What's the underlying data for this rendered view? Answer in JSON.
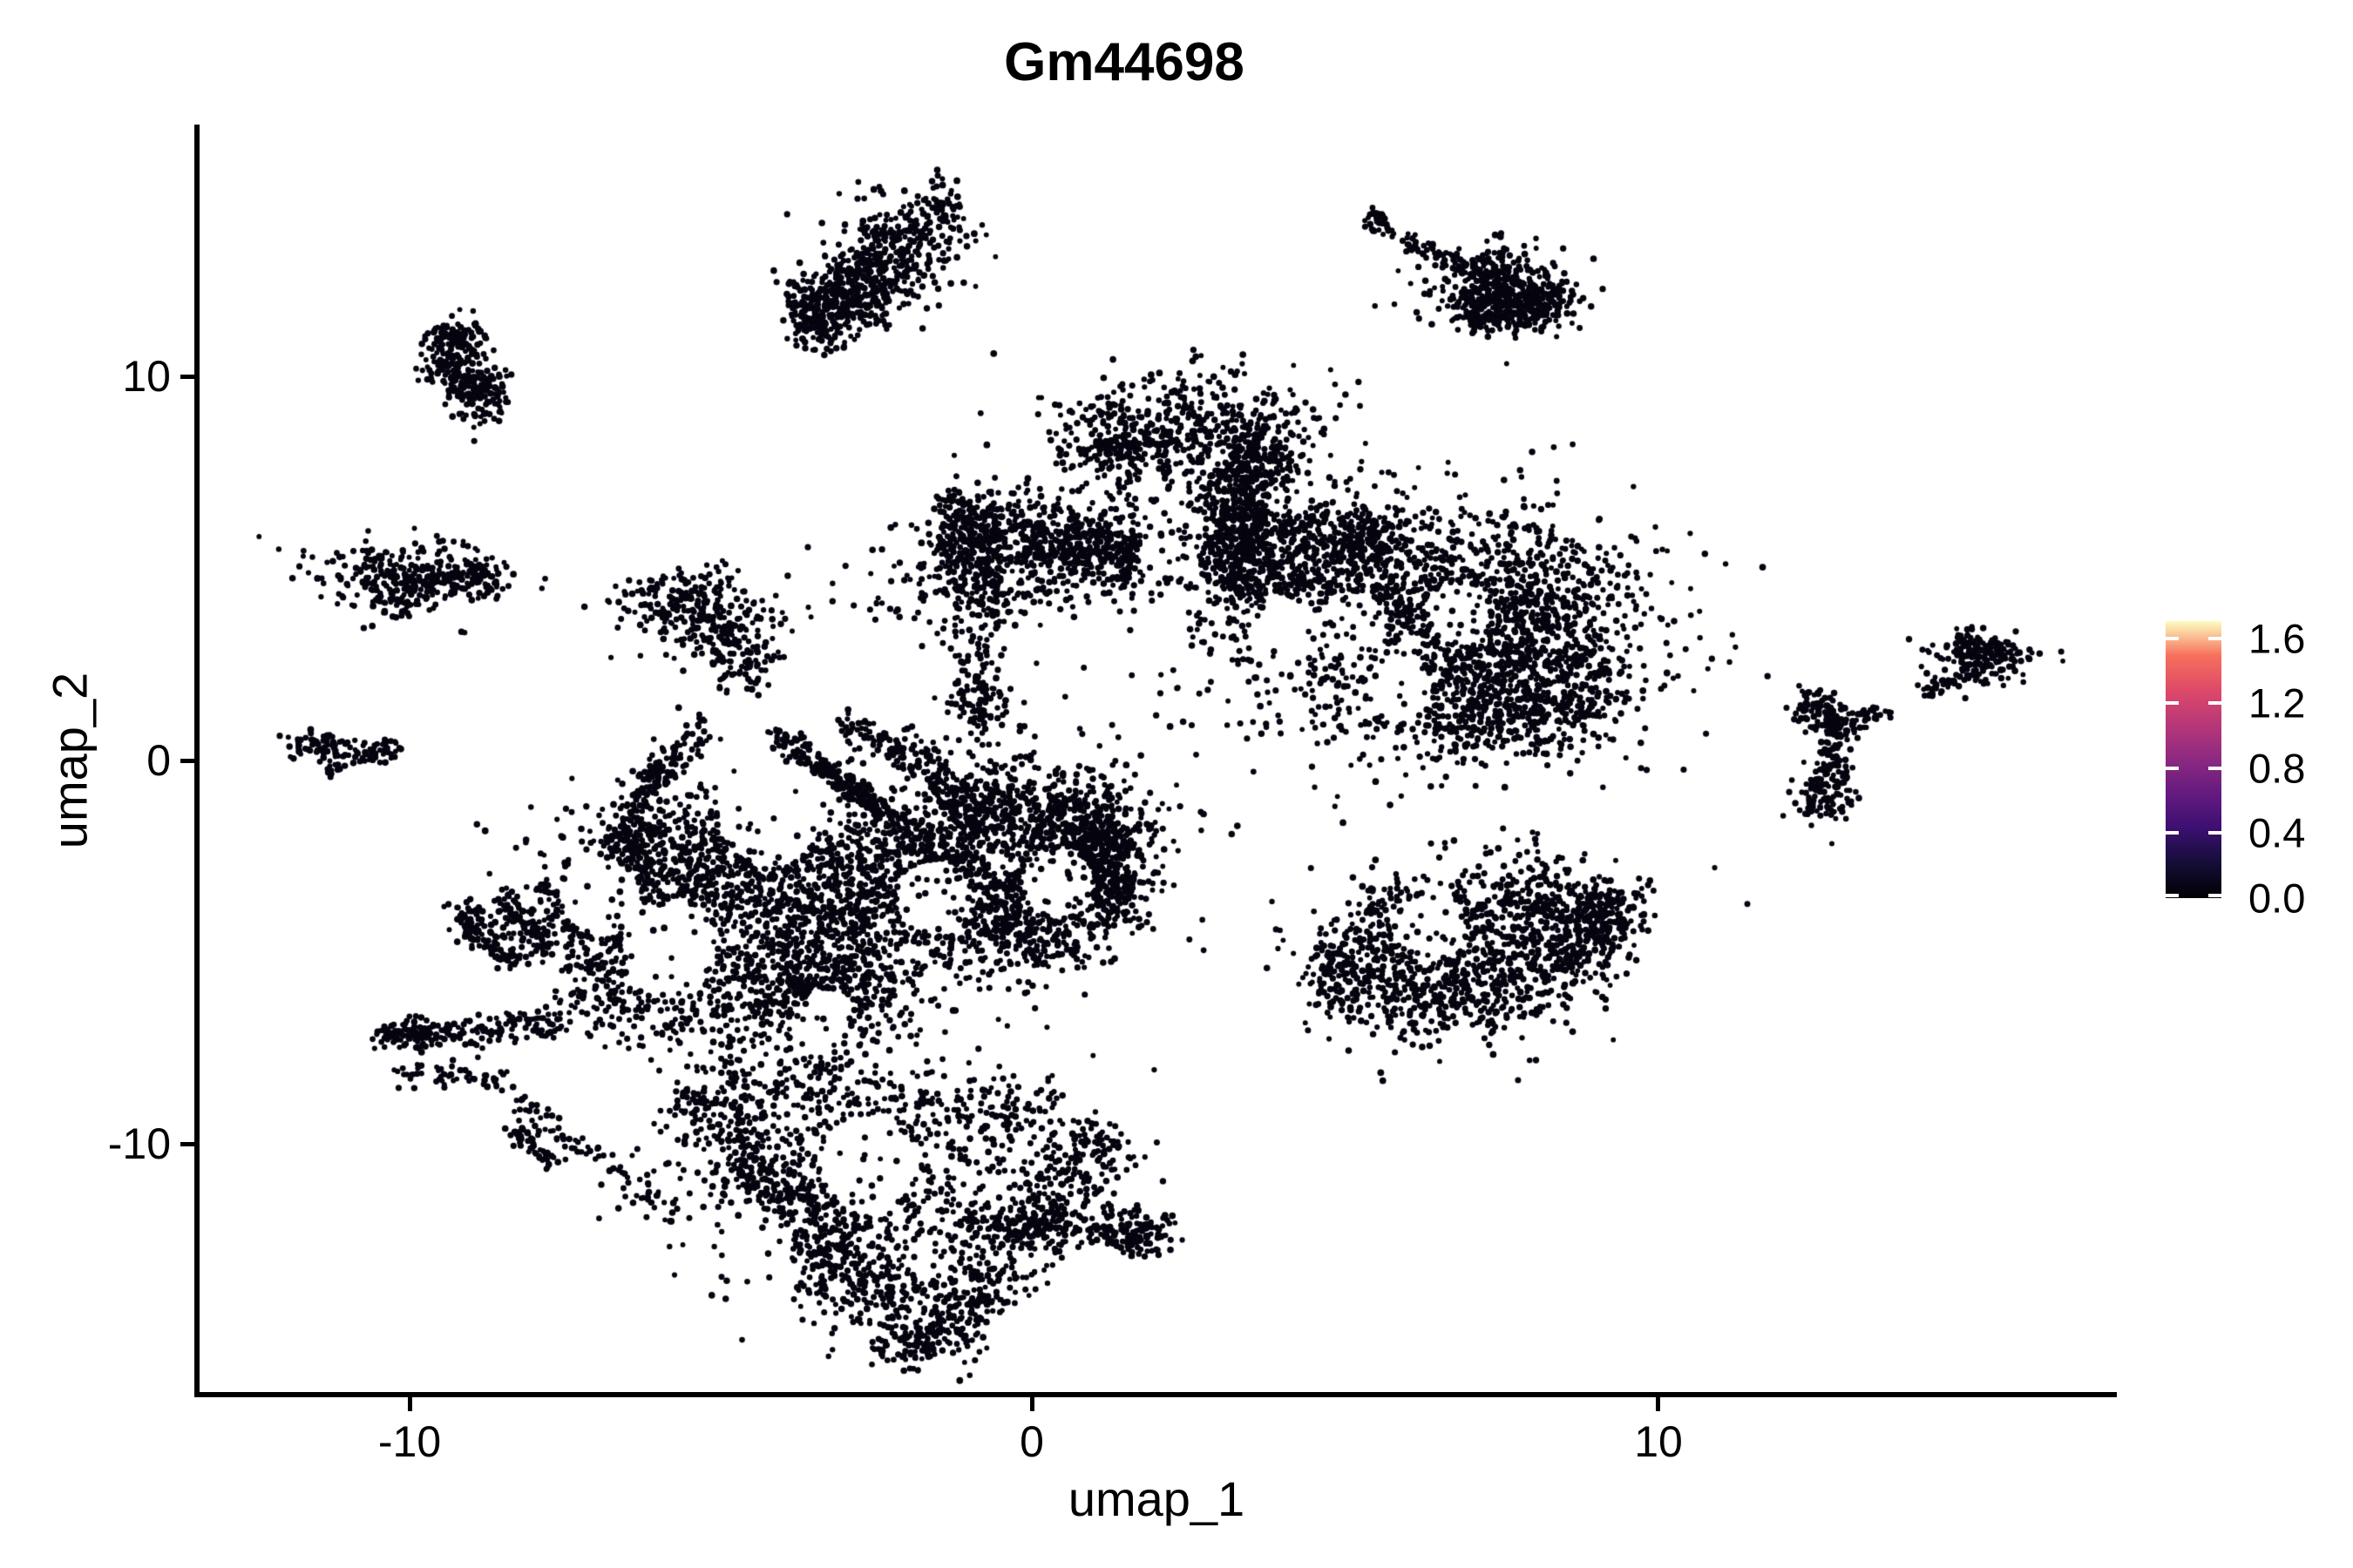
{
  "title": "Gm44698",
  "axes": {
    "x": {
      "label": "umap_1",
      "ticks": [
        "-10",
        "0",
        "10"
      ]
    },
    "y": {
      "label": "umap_2",
      "ticks": [
        "10",
        "0",
        "-10"
      ]
    }
  },
  "legend": {
    "labels": [
      "1.6",
      "1.2",
      "0.8",
      "0.4",
      "0.0"
    ]
  },
  "chart_data": {
    "type": "scatter",
    "title": "Gm44698",
    "xlabel": "umap_1",
    "ylabel": "umap_2",
    "xlim": [
      -13.37,
      17.38
    ],
    "ylim": [
      -16.53,
      16.5
    ],
    "xticks": [
      -10,
      0,
      10
    ],
    "yticks": [
      -10,
      0,
      10
    ],
    "grid": false,
    "legend_position": "right",
    "colorbar": {
      "label_values": [
        1.6,
        1.2,
        0.8,
        0.4,
        0.0
      ],
      "vmin": 0.0,
      "vmax": 1.72,
      "colormap": "magma",
      "stops": [
        "#000004",
        "#140e36",
        "#3b0f70",
        "#641a80",
        "#8c2981",
        "#b73779",
        "#de4968",
        "#f7705c",
        "#fcfdbf"
      ]
    },
    "point_color": "#06040f",
    "point_radius": 3.4,
    "seed": 42,
    "clusters": [
      {
        "t": "b",
        "x1": -3.75,
        "y1": 11.4,
        "x2": -1.2,
        "y2": 14.5,
        "w": 50,
        "n": 430
      },
      {
        "t": "b",
        "x1": -3.85,
        "y1": 11.15,
        "x2": -2.3,
        "y2": 12.2,
        "w": 38,
        "n": 210
      },
      {
        "t": "g",
        "cx": -2.35,
        "cy": 13.0,
        "rx": 0.6,
        "ry": 0.85,
        "n": 140
      },
      {
        "t": "b",
        "x1": -9.15,
        "y1": 11.35,
        "x2": -9.35,
        "y2": 9.9,
        "w": 40,
        "n": 190
      },
      {
        "t": "b",
        "x1": -9.3,
        "y1": 9.85,
        "x2": -8.45,
        "y2": 9.3,
        "w": 36,
        "n": 130
      },
      {
        "t": "b",
        "x1": 5.33,
        "y1": 14.25,
        "x2": 5.75,
        "y2": 13.9,
        "w": 14,
        "n": 35
      },
      {
        "t": "b",
        "x1": 5.95,
        "y1": 13.6,
        "x2": 7.3,
        "y2": 12.6,
        "w": 13,
        "n": 80
      },
      {
        "t": "b",
        "x1": 7.0,
        "y1": 12.75,
        "x2": 8.35,
        "y2": 11.8,
        "w": 46,
        "n": 250
      },
      {
        "t": "g",
        "cx": 8.1,
        "cy": 11.9,
        "rx": 0.42,
        "ry": 0.33,
        "n": 150
      },
      {
        "t": "g",
        "cx": 7.2,
        "cy": 12.15,
        "rx": 0.55,
        "ry": 0.5,
        "n": 110
      },
      {
        "t": "g",
        "cx": 7.35,
        "cy": 11.55,
        "rx": 0.3,
        "ry": 0.25,
        "n": 80
      },
      {
        "t": "g",
        "cx": -9.95,
        "cy": 4.85,
        "rx": 0.8,
        "ry": 0.45,
        "n": 250
      },
      {
        "t": "b",
        "x1": -9.2,
        "y1": 4.95,
        "x2": -8.55,
        "y2": 4.6,
        "w": 30,
        "n": 70
      },
      {
        "t": "g",
        "cx": -10.2,
        "cy": 4.25,
        "rx": 0.4,
        "ry": 0.35,
        "n": 70
      },
      {
        "t": "g",
        "cx": -5.55,
        "cy": 4.1,
        "rx": 0.5,
        "ry": 0.5,
        "n": 190
      },
      {
        "t": "g",
        "cx": -4.75,
        "cy": 3.5,
        "rx": 0.6,
        "ry": 0.55,
        "n": 90
      },
      {
        "t": "b",
        "x1": -5.1,
        "y1": 3.2,
        "x2": -4.35,
        "y2": 2.1,
        "w": 40,
        "n": 80
      },
      {
        "t": "g",
        "cx": -11.35,
        "cy": 0.35,
        "rx": 0.33,
        "ry": 0.2,
        "n": 70
      },
      {
        "t": "b",
        "x1": -10.95,
        "y1": 0.15,
        "x2": -10.1,
        "y2": 0.3,
        "w": 18,
        "n": 50
      },
      {
        "t": "g",
        "cx": -11.15,
        "cy": -0.2,
        "rx": 0.12,
        "ry": 0.1,
        "n": 12
      },
      {
        "t": "g",
        "cx": 2.55,
        "cy": 8.65,
        "rx": 1.1,
        "ry": 0.8,
        "n": 500
      },
      {
        "t": "g",
        "cx": 1.55,
        "cy": 8.1,
        "rx": 0.5,
        "ry": 0.5,
        "n": 110
      },
      {
        "t": "b",
        "x1": 3.3,
        "y1": 8.2,
        "x2": 4.05,
        "y2": 7.35,
        "w": 40,
        "n": 130
      },
      {
        "t": "b",
        "x1": 3.15,
        "y1": 7.7,
        "x2": 3.5,
        "y2": 5.3,
        "w": 46,
        "n": 250
      },
      {
        "t": "g",
        "cx": 3.3,
        "cy": 6.4,
        "rx": 0.75,
        "ry": 0.9,
        "n": 80
      },
      {
        "t": "b",
        "x1": -1.5,
        "y1": 6.05,
        "x2": 1.7,
        "y2": 5.4,
        "w": 56,
        "n": 760
      },
      {
        "t": "g",
        "cx": -0.8,
        "cy": 4.7,
        "rx": 1.0,
        "ry": 0.75,
        "n": 170
      },
      {
        "t": "b",
        "x1": -1.2,
        "y1": 5.6,
        "x2": -0.55,
        "y2": 3.5,
        "w": 60,
        "n": 120
      },
      {
        "t": "g",
        "cx": -0.85,
        "cy": 1.5,
        "rx": 0.26,
        "ry": 0.38,
        "n": 85
      },
      {
        "t": "b",
        "x1": -0.9,
        "y1": 3.2,
        "x2": -0.82,
        "y2": 2.0,
        "w": 30,
        "n": 35
      },
      {
        "t": "g",
        "cx": 4.6,
        "cy": 4.9,
        "rx": 1.15,
        "ry": 0.95,
        "n": 450
      },
      {
        "t": "g",
        "cx": 6.5,
        "cy": 4.6,
        "rx": 1.6,
        "ry": 1.15,
        "n": 650
      },
      {
        "t": "g",
        "cx": 6.3,
        "cy": 2.7,
        "rx": 1.8,
        "ry": 1.4,
        "n": 750
      },
      {
        "t": "g",
        "cx": 8.0,
        "cy": 3.4,
        "rx": 0.85,
        "ry": 1.4,
        "n": 420
      },
      {
        "t": "g",
        "cx": 7.3,
        "cy": 1.3,
        "rx": 0.85,
        "ry": 0.65,
        "n": 280
      },
      {
        "t": "b",
        "x1": 3.0,
        "y1": 6.1,
        "x2": 5.7,
        "y2": 5.95,
        "w": 40,
        "n": 200
      },
      {
        "t": "b",
        "x1": 3.0,
        "y1": 5.9,
        "x2": 3.6,
        "y2": 4.3,
        "w": 50,
        "n": 160
      },
      {
        "t": "g",
        "cx": 8.55,
        "cy": 1.95,
        "rx": 0.5,
        "ry": 0.75,
        "n": 150
      },
      {
        "t": "b",
        "x1": 4.5,
        "y1": -5.2,
        "x2": 6.9,
        "y2": -6.2,
        "w": 75,
        "n": 420
      },
      {
        "t": "b",
        "x1": 6.9,
        "y1": -6.2,
        "x2": 9.3,
        "y2": -3.95,
        "w": 80,
        "n": 500
      },
      {
        "t": "b",
        "x1": 5.3,
        "y1": -4.05,
        "x2": 8.6,
        "y2": -2.95,
        "w": 55,
        "n": 210
      },
      {
        "t": "g",
        "cx": 9.15,
        "cy": -3.95,
        "rx": 0.4,
        "ry": 0.5,
        "n": 160
      },
      {
        "t": "g",
        "cx": 6.8,
        "cy": -4.7,
        "rx": 1.4,
        "ry": 0.85,
        "n": 210
      },
      {
        "t": "b",
        "x1": 12.3,
        "y1": 1.6,
        "x2": 13.0,
        "y2": 1.15,
        "w": 30,
        "n": 70
      },
      {
        "t": "g",
        "cx": 12.95,
        "cy": 0.95,
        "rx": 0.2,
        "ry": 0.2,
        "n": 40
      },
      {
        "t": "b",
        "x1": 12.9,
        "y1": 0.8,
        "x2": 12.8,
        "y2": -0.35,
        "w": 16,
        "n": 45
      },
      {
        "t": "g",
        "cx": 12.7,
        "cy": -0.85,
        "rx": 0.27,
        "ry": 0.45,
        "n": 110
      },
      {
        "t": "b",
        "x1": 13.3,
        "y1": 1.2,
        "x2": 13.75,
        "y2": 1.42,
        "w": 14,
        "n": 28
      },
      {
        "t": "b",
        "x1": 14.3,
        "y1": 1.75,
        "x2": 15.1,
        "y2": 2.35,
        "w": 13,
        "n": 40
      },
      {
        "t": "g",
        "cx": 15.35,
        "cy": 2.6,
        "rx": 0.42,
        "ry": 0.3,
        "n": 160
      },
      {
        "t": "g",
        "cx": 15.05,
        "cy": 3.1,
        "rx": 0.15,
        "ry": 0.2,
        "n": 30
      },
      {
        "t": "b",
        "x1": -5.2,
        "y1": 0.9,
        "x2": -6.15,
        "y2": -0.6,
        "w": 24,
        "n": 100
      },
      {
        "t": "b",
        "x1": -6.15,
        "y1": -0.6,
        "x2": -6.55,
        "y2": -2.2,
        "w": 24,
        "n": 80
      },
      {
        "t": "b",
        "x1": -6.55,
        "y1": -2.2,
        "x2": -6.2,
        "y2": -3.5,
        "w": 28,
        "n": 55
      },
      {
        "t": "b",
        "x1": -4.1,
        "y1": 0.65,
        "x2": -2.15,
        "y2": -1.6,
        "w": 17,
        "n": 230
      },
      {
        "t": "b",
        "x1": -2.15,
        "y1": -1.6,
        "x2": -1.0,
        "y2": -2.95,
        "w": 30,
        "n": 90
      },
      {
        "t": "b",
        "x1": -3.0,
        "y1": 0.95,
        "x2": -1.9,
        "y2": 0.2,
        "w": 20,
        "n": 80
      },
      {
        "t": "b",
        "x1": -1.9,
        "y1": 0.2,
        "x2": -0.95,
        "y2": -1.55,
        "w": 26,
        "n": 110
      },
      {
        "t": "g",
        "cx": -0.35,
        "cy": -2.6,
        "rx": 1.0,
        "ry": 1.45,
        "n": 650
      },
      {
        "t": "g",
        "cx": 0.9,
        "cy": -2.3,
        "rx": 0.7,
        "ry": 1.0,
        "n": 320
      },
      {
        "t": "b",
        "x1": 0.3,
        "y1": -1.0,
        "x2": 1.2,
        "y2": -2.4,
        "w": 50,
        "n": 180
      },
      {
        "t": "g",
        "cx": 0.0,
        "cy": -4.3,
        "rx": 0.8,
        "ry": 0.6,
        "n": 260
      },
      {
        "t": "b",
        "x1": 1.35,
        "y1": -2.0,
        "x2": 1.15,
        "y2": -4.0,
        "w": 46,
        "n": 200
      },
      {
        "t": "b",
        "x1": -1.05,
        "y1": -1.5,
        "x2": -0.25,
        "y2": -0.9,
        "w": 40,
        "n": 110
      },
      {
        "t": "b",
        "x1": -10.45,
        "y1": -7.25,
        "x2": -7.5,
        "y2": -6.85,
        "w": 20,
        "n": 150
      },
      {
        "t": "g",
        "cx": -9.9,
        "cy": -7.15,
        "rx": 0.3,
        "ry": 0.2,
        "n": 55
      },
      {
        "t": "b",
        "x1": -10.2,
        "y1": -8.15,
        "x2": -8.4,
        "y2": -8.3,
        "w": 14,
        "n": 55
      },
      {
        "t": "b",
        "x1": -9.2,
        "y1": -3.9,
        "x2": -8.3,
        "y2": -5.3,
        "w": 24,
        "n": 120
      },
      {
        "t": "b",
        "x1": -8.5,
        "y1": -3.55,
        "x2": -7.7,
        "y2": -5.0,
        "w": 22,
        "n": 100
      },
      {
        "t": "b",
        "x1": -7.9,
        "y1": -3.25,
        "x2": -7.15,
        "y2": -4.6,
        "w": 20,
        "n": 85
      },
      {
        "t": "g",
        "cx": -4.6,
        "cy": -3.1,
        "rx": 1.55,
        "ry": 1.15,
        "n": 560
      },
      {
        "t": "g",
        "cx": -3.2,
        "cy": -4.3,
        "rx": 1.35,
        "ry": 1.25,
        "n": 650
      },
      {
        "t": "g",
        "cx": -5.6,
        "cy": -2.2,
        "rx": 1.0,
        "ry": 0.8,
        "n": 280
      },
      {
        "t": "g",
        "cx": -2.3,
        "cy": -2.9,
        "rx": 1.0,
        "ry": 1.0,
        "n": 380
      },
      {
        "t": "g",
        "cx": -6.3,
        "cy": -4.3,
        "rx": 0.9,
        "ry": 0.85,
        "n": 140
      },
      {
        "t": "b",
        "x1": -7.5,
        "y1": -5.6,
        "x2": -5.2,
        "y2": -6.4,
        "w": 70,
        "n": 240
      },
      {
        "t": "g",
        "cx": -4.3,
        "cy": -6.0,
        "rx": 1.15,
        "ry": 0.8,
        "n": 320
      },
      {
        "t": "b",
        "x1": -3.6,
        "y1": -5.5,
        "x2": -2.9,
        "y2": -7.6,
        "w": 80,
        "n": 280
      },
      {
        "t": "b",
        "x1": -8.2,
        "y1": -8.9,
        "x2": -5.6,
        "y2": -12.0,
        "w": 20,
        "n": 85
      },
      {
        "t": "b",
        "x1": -8.35,
        "y1": -9.3,
        "x2": -7.7,
        "y2": -10.6,
        "w": 18,
        "n": 55
      },
      {
        "t": "b",
        "x1": -5.6,
        "y1": -8.6,
        "x2": -1.65,
        "y2": -15.3,
        "w": 60,
        "n": 650
      },
      {
        "t": "g",
        "cx": -2.6,
        "cy": -11.0,
        "rx": 1.45,
        "ry": 1.55,
        "n": 650
      },
      {
        "t": "b",
        "x1": 1.3,
        "y1": -9.6,
        "x2": -1.3,
        "y2": -14.6,
        "w": 55,
        "n": 420
      },
      {
        "t": "b",
        "x1": -5.0,
        "y1": -8.3,
        "x2": 0.3,
        "y2": -9.3,
        "w": 60,
        "n": 240
      },
      {
        "t": "b",
        "x1": -1.1,
        "y1": -11.9,
        "x2": 1.8,
        "y2": -12.55,
        "w": 24,
        "n": 150
      },
      {
        "t": "g",
        "cx": 1.8,
        "cy": -12.3,
        "rx": 0.3,
        "ry": 0.35,
        "n": 90
      },
      {
        "t": "g",
        "cx": -1.6,
        "cy": -15.1,
        "rx": 0.35,
        "ry": 0.4,
        "n": 80
      }
    ],
    "holes": [
      [
        -4.2,
        -1.4,
        60
      ],
      [
        -5.8,
        -5.0,
        55
      ],
      [
        -1.55,
        -3.55,
        42
      ],
      [
        -6.9,
        -3.6,
        45
      ],
      [
        -2.6,
        -10.5,
        55
      ],
      [
        -4.35,
        -12.6,
        38
      ],
      [
        -3.3,
        -6.9,
        40
      ],
      [
        0.45,
        -3.2,
        40
      ],
      [
        5.15,
        3.55,
        38
      ],
      [
        6.85,
        3.85,
        34
      ],
      [
        5.9,
        1.9,
        36
      ],
      [
        4.1,
        3.3,
        40
      ],
      [
        6.4,
        -4.35,
        40
      ]
    ]
  }
}
